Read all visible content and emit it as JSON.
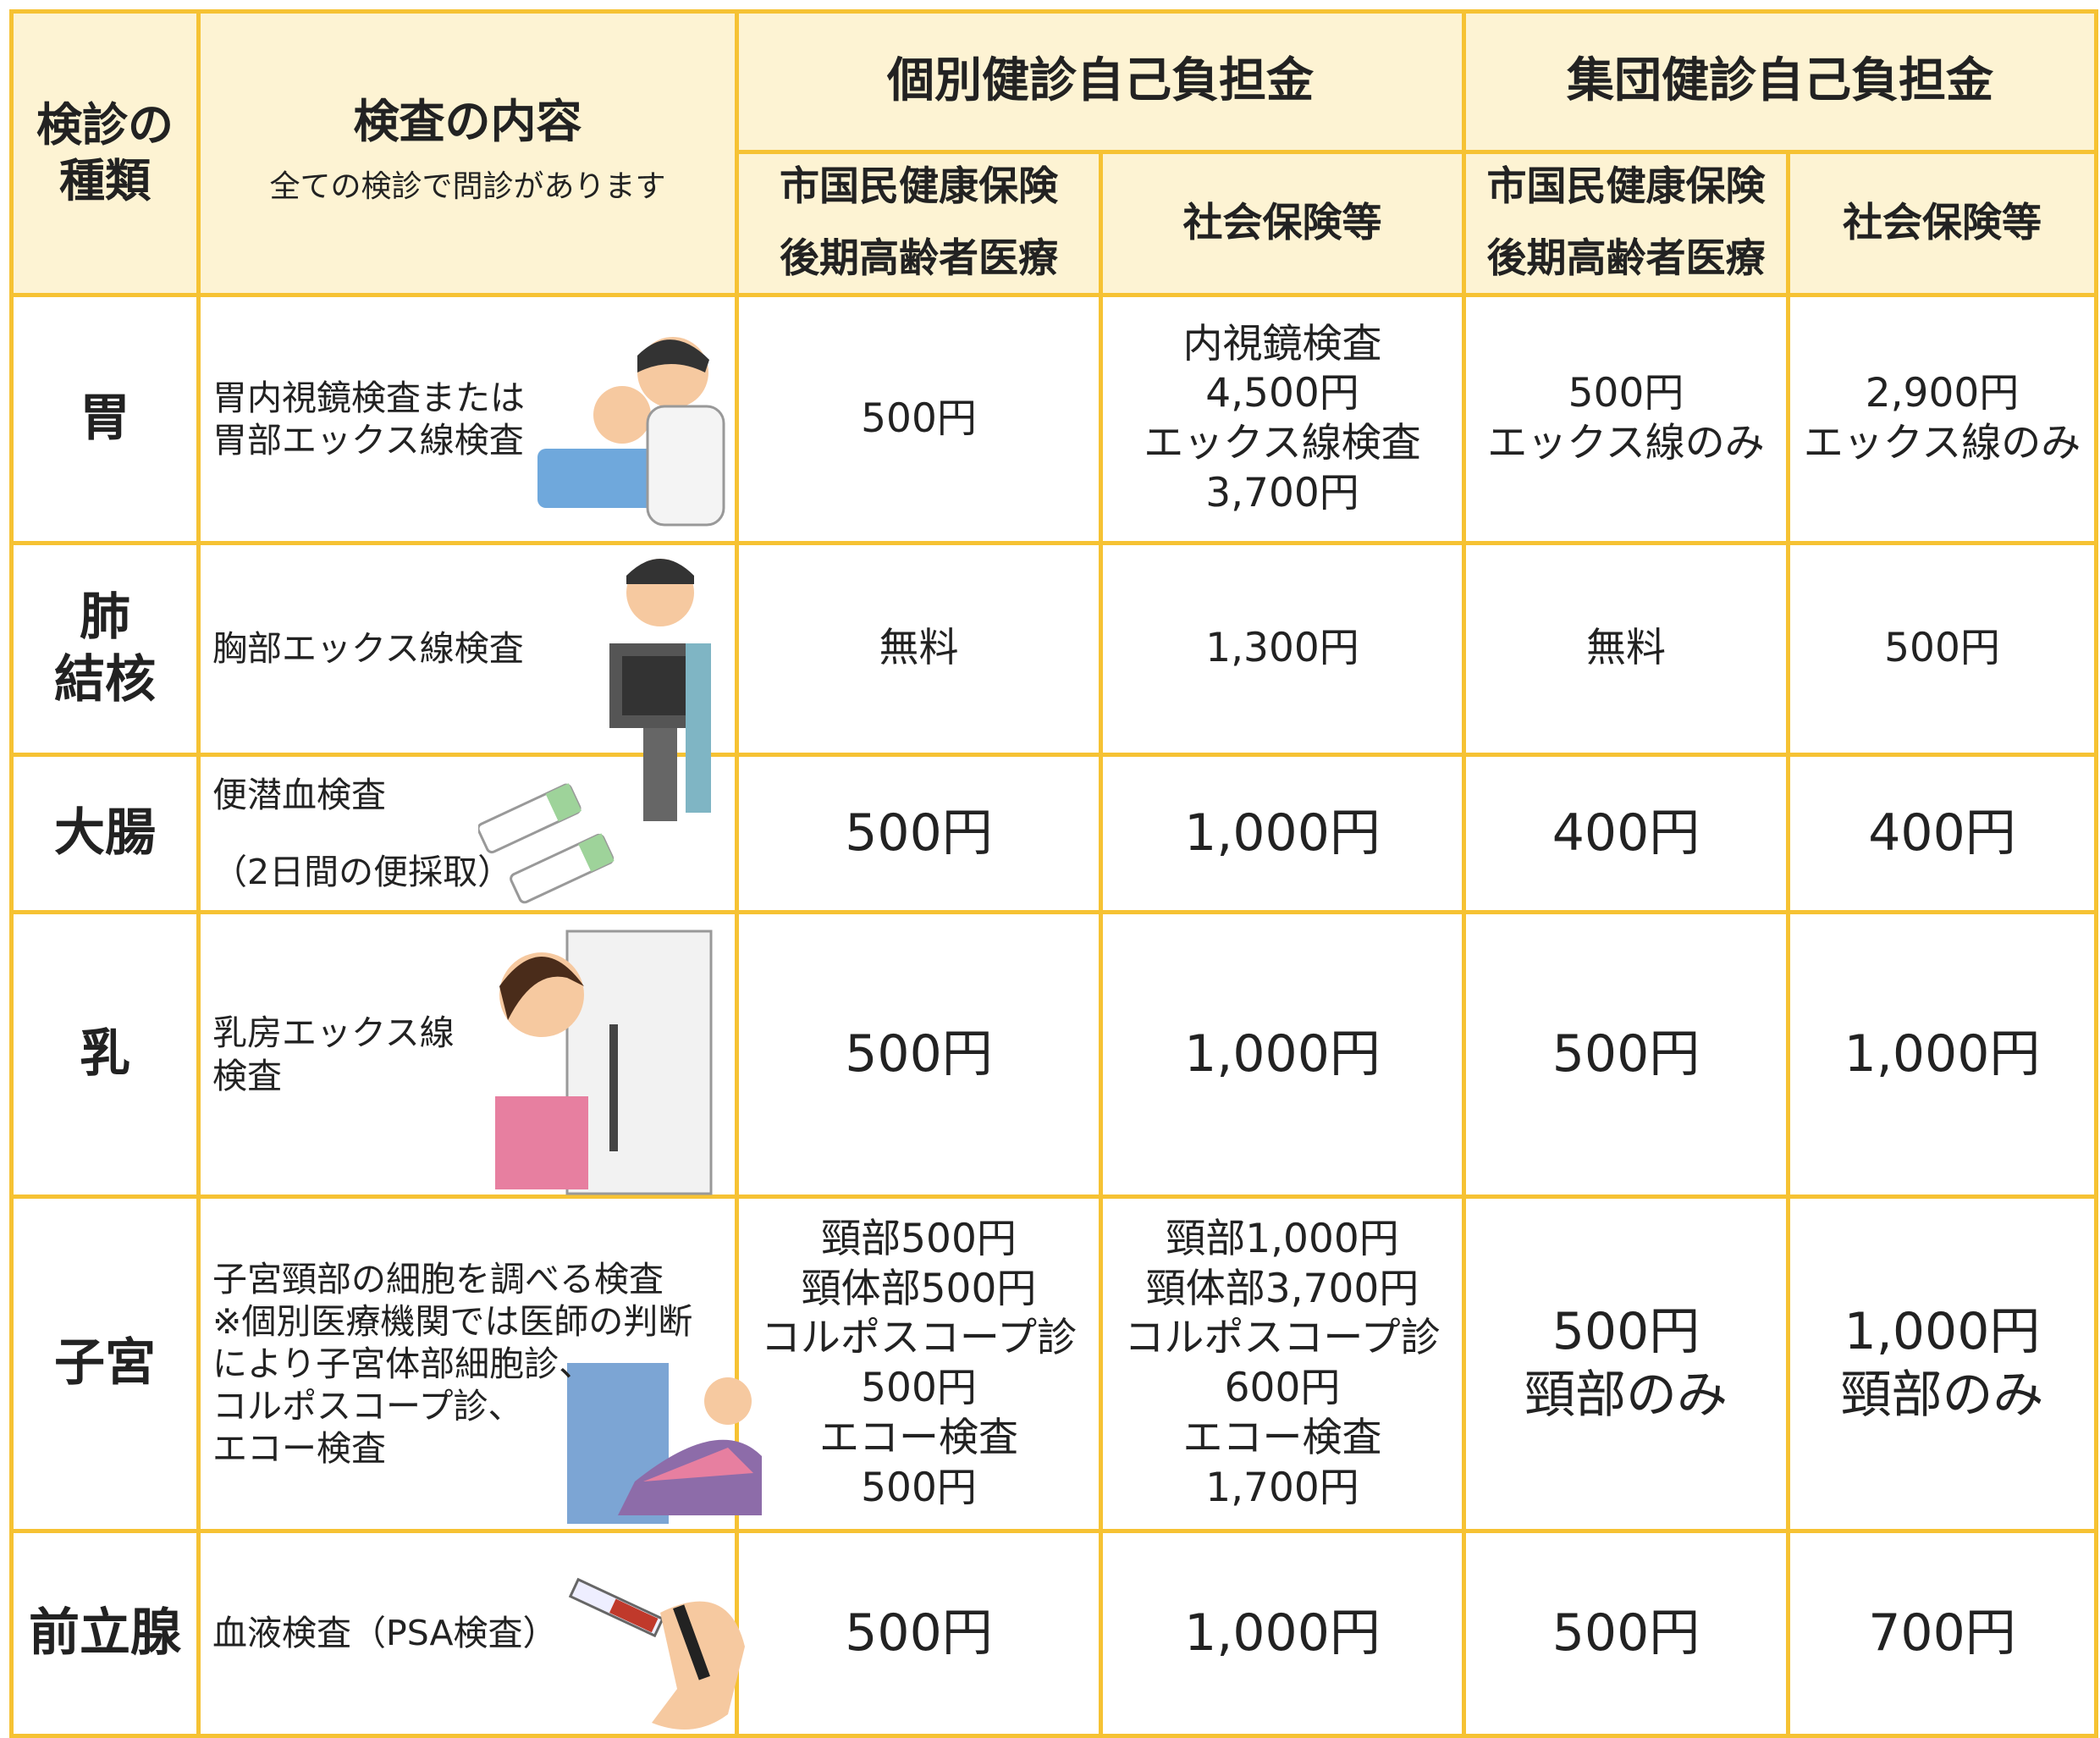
{
  "header": {
    "type_label": [
      "検診の",
      "種類"
    ],
    "content_label": "検査の内容",
    "content_note": "全ての検診で問診があります",
    "individual": "個別健診自己負担金",
    "group": "集団健診自己負担金",
    "sub_columns": [
      [
        "市国民健康保険",
        "後期高齢者医療"
      ],
      [
        "社会保険等"
      ],
      [
        "市国民健康保険",
        "後期高齢者医療"
      ],
      [
        "社会保険等"
      ]
    ]
  },
  "rows": [
    {
      "type": [
        "胃"
      ],
      "content": [
        "胃内視鏡検査または",
        "胃部エックス線検査"
      ],
      "prices": [
        [
          "500円"
        ],
        [
          "内視鏡検査",
          "4,500円",
          "エックス線検査",
          "3,700円"
        ],
        [
          "500円",
          "エックス線のみ"
        ],
        [
          "2,900円",
          "エックス線のみ"
        ]
      ]
    },
    {
      "type": [
        "肺",
        "結核"
      ],
      "content": [
        "胸部エックス線検査"
      ],
      "prices": [
        [
          "無料"
        ],
        [
          "1,300円"
        ],
        [
          "無料"
        ],
        [
          "500円"
        ]
      ]
    },
    {
      "type": [
        "大腸"
      ],
      "content": [
        "便潜血検査",
        "（2日間の便採取）"
      ],
      "prices": [
        [
          "500円"
        ],
        [
          "1,000円"
        ],
        [
          "400円"
        ],
        [
          "400円"
        ]
      ]
    },
    {
      "type": [
        "乳"
      ],
      "content": [
        "乳房エックス線",
        "検査"
      ],
      "prices": [
        [
          "500円"
        ],
        [
          "1,000円"
        ],
        [
          "500円"
        ],
        [
          "1,000円"
        ]
      ]
    },
    {
      "type": [
        "子宮"
      ],
      "content": [
        "子宮頸部の細胞を調べる検査",
        "※個別医療機関では医師の判断",
        "により子宮体部細胞診、",
        "コルポスコープ診、",
        "エコー検査"
      ],
      "prices": [
        [
          "頸部500円",
          "頸体部500円",
          "コルポスコープ診",
          "500円",
          "エコー検査",
          "500円"
        ],
        [
          "頸部1,000円",
          "頸体部3,700円",
          "コルポスコープ診",
          "600円",
          "エコー検査",
          "1,700円"
        ],
        [
          "500円",
          "頸部のみ"
        ],
        [
          "1,000円",
          "頸部のみ"
        ]
      ]
    },
    {
      "type": [
        "前立腺"
      ],
      "content": [
        "血液検査（PSA検査）"
      ],
      "prices": [
        [
          "500円"
        ],
        [
          "1,000円"
        ],
        [
          "500円"
        ],
        [
          "700円"
        ]
      ]
    }
  ]
}
